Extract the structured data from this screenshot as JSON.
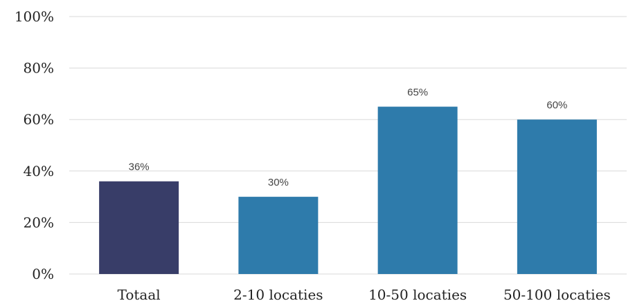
{
  "chart_data": {
    "type": "bar",
    "categories": [
      "Totaal",
      "2-10 locaties",
      "10-50 locaties",
      "50-100 locaties"
    ],
    "values": [
      36,
      30,
      65,
      60
    ],
    "data_labels": [
      "36%",
      "30%",
      "65%",
      "60%"
    ],
    "ylim": [
      0,
      100
    ],
    "yticks": [
      0,
      20,
      40,
      60,
      80,
      100
    ],
    "ytick_labels": [
      "0%",
      "20%",
      "40%",
      "60%",
      "80%",
      "100%"
    ],
    "grid": true,
    "colors": [
      "#383d68",
      "#2e7bab",
      "#2e7bab",
      "#2e7bab"
    ]
  }
}
